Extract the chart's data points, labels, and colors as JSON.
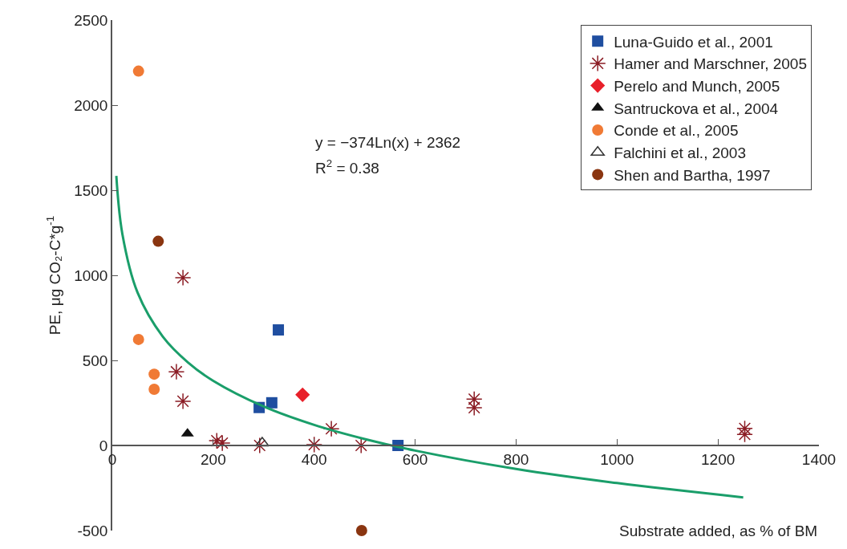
{
  "chart_data": {
    "type": "scatter",
    "xlabel": "Substrate added, as % of BM",
    "ylabel": "PE, μg CO₂-C*g$^{-1}$",
    "xlim": [
      0,
      1400
    ],
    "xticks": [
      0,
      200,
      400,
      600,
      800,
      1000,
      1200,
      1400
    ],
    "ylim": [
      -500,
      2500
    ],
    "yticks": [
      -500,
      0,
      500,
      1000,
      1500,
      2000,
      2500
    ],
    "grid": false,
    "legend": "top right",
    "annotations": [
      "y = −374Ln(x) + 2362",
      "R$^{2}$ = 0.38"
    ],
    "series": [
      {
        "name": "Luna-Guido et al., 2001",
        "color": "#1f4ea0",
        "marker": "square",
        "x": [
          291,
          316,
          329,
          566
        ],
        "values": [
          223,
          251,
          679,
          0
        ]
      },
      {
        "name": "Hamer and Marschner, 2005",
        "color": "#8b1c24",
        "marker": "cross",
        "x": [
          140,
          127,
          140,
          207,
          218,
          292,
          400,
          434,
          493,
          717,
          717,
          1253,
          1253
        ],
        "values": [
          986,
          433,
          260,
          28,
          14,
          0,
          5,
          98,
          0,
          272,
          222,
          100,
          65
        ]
      },
      {
        "name": "Perelo and Munch, 2005",
        "color": "#e8202a",
        "marker": "diamond",
        "x": [
          377
        ],
        "values": [
          298
        ]
      },
      {
        "name": "Santruckova et al., 2004",
        "color": "#111111",
        "marker": "triangle",
        "x": [
          149
        ],
        "values": [
          70
        ]
      },
      {
        "name": "Conde et al., 2005",
        "color": "#f07a35",
        "marker": "circle",
        "x": [
          52,
          52,
          83,
          83
        ],
        "values": [
          2200,
          623,
          419,
          330
        ]
      },
      {
        "name": "Falchini et al., 2003",
        "color": "#333333",
        "marker": "triangle-open",
        "x": [
          297
        ],
        "values": [
          14
        ]
      },
      {
        "name": "Shen and Bartha, 1997",
        "color": "#8a3510",
        "marker": "circle",
        "x": [
          91,
          494
        ],
        "values": [
          1200,
          -500
        ]
      },
      {
        "type": "line",
        "color": "#1a9e6a",
        "marker": "none",
        "x": [
          8,
          20,
          50,
          100,
          150,
          200,
          300,
          400,
          500,
          600,
          800,
          1000,
          1250
        ],
        "values": [
          1584,
          1242,
          899,
          640,
          488,
          380,
          229,
          121,
          38,
          -30,
          -138,
          -221,
          -305
        ]
      }
    ]
  }
}
